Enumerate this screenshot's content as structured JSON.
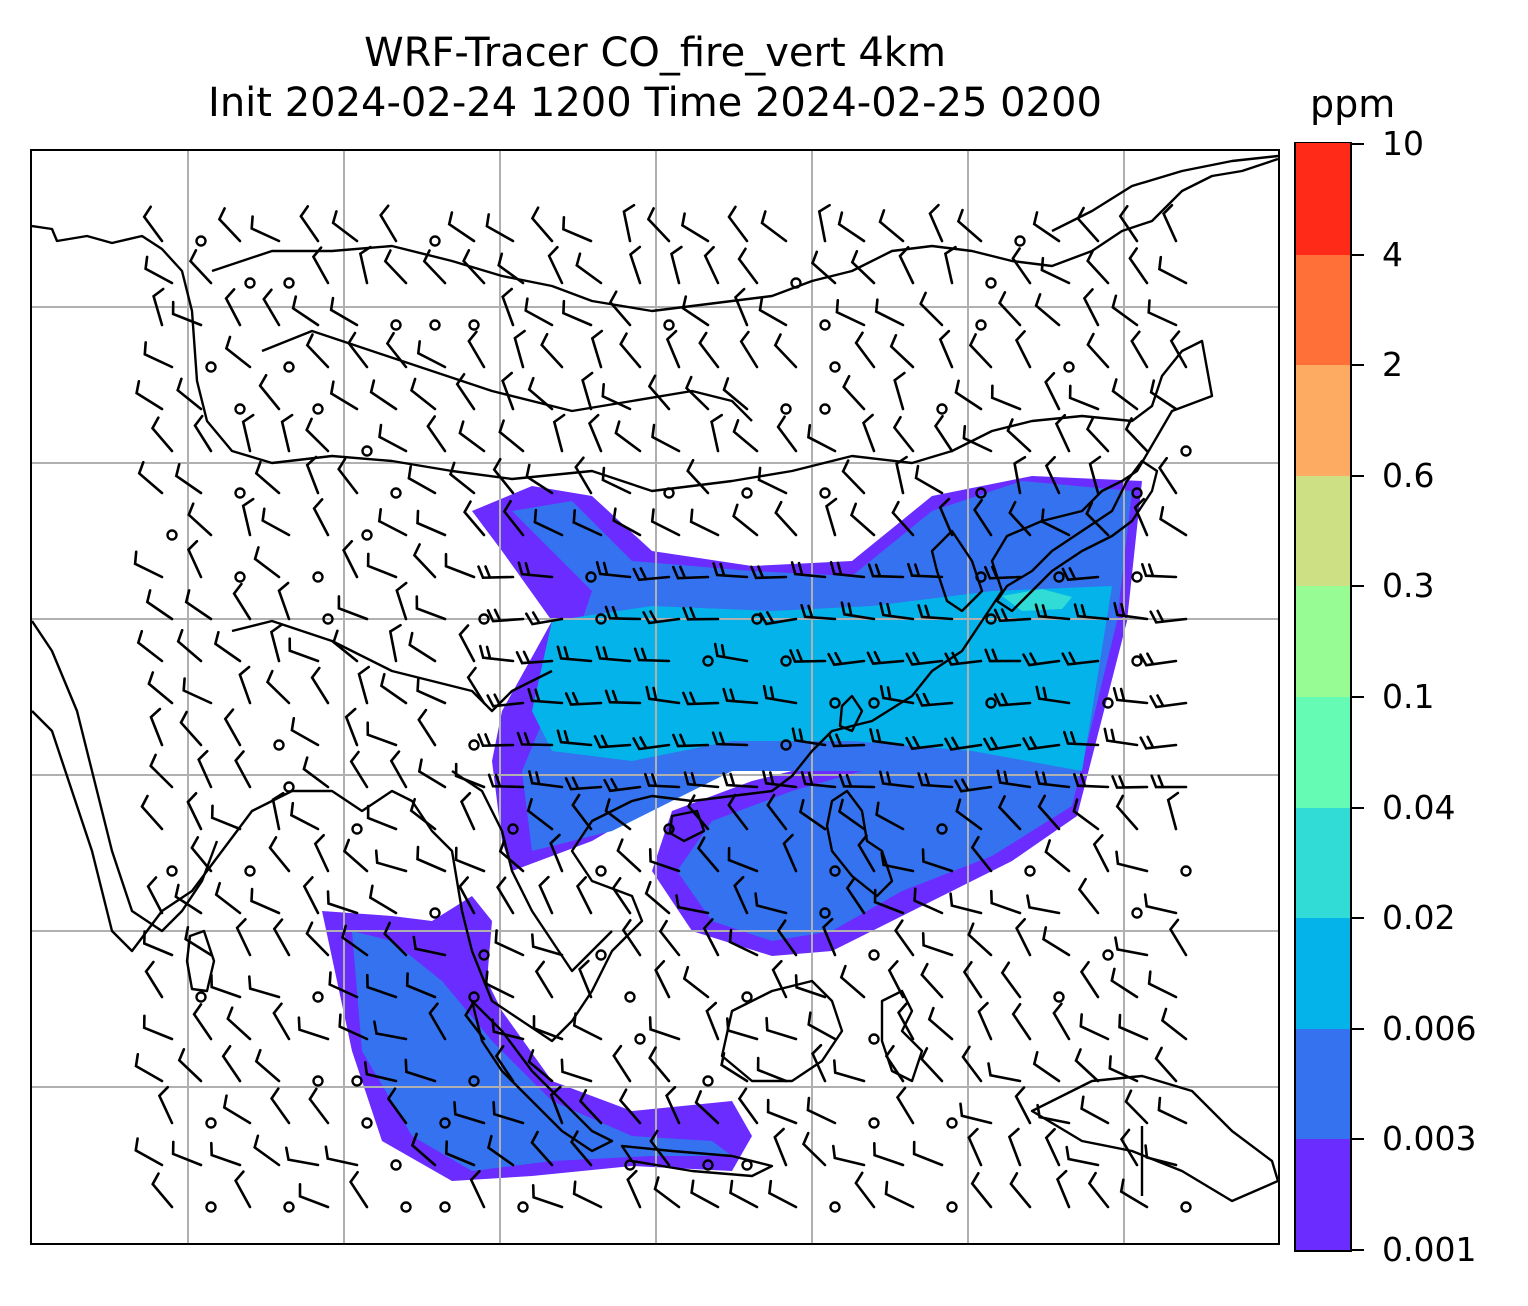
{
  "title": {
    "line1": "WRF-Tracer CO_fire_vert 4km",
    "line2": "Init 2024-02-24 1200 Time 2024-02-25 0200"
  },
  "colorbar": {
    "unit": "ppm",
    "levels": [
      "0.001",
      "0.003",
      "0.006",
      "0.02",
      "0.04",
      "0.1",
      "0.3",
      "0.6",
      "2",
      "4",
      "10"
    ],
    "colors": [
      "#6a2cff",
      "#3572ef",
      "#03b3ea",
      "#30dcd5",
      "#65fbb4",
      "#96fc93",
      "#cde083",
      "#fdab62",
      "#fe7038",
      "#ff2b18"
    ]
  },
  "map": {
    "gridlines": true,
    "gridline_color": "#b0b0b0",
    "coastline_color": "#000000",
    "plume_colors": {
      "outer": "#6a2cff",
      "middle": "#3572ef",
      "core": "#03b3ea",
      "hot": "#30dcd5"
    },
    "overlay": "wind barbs"
  }
}
